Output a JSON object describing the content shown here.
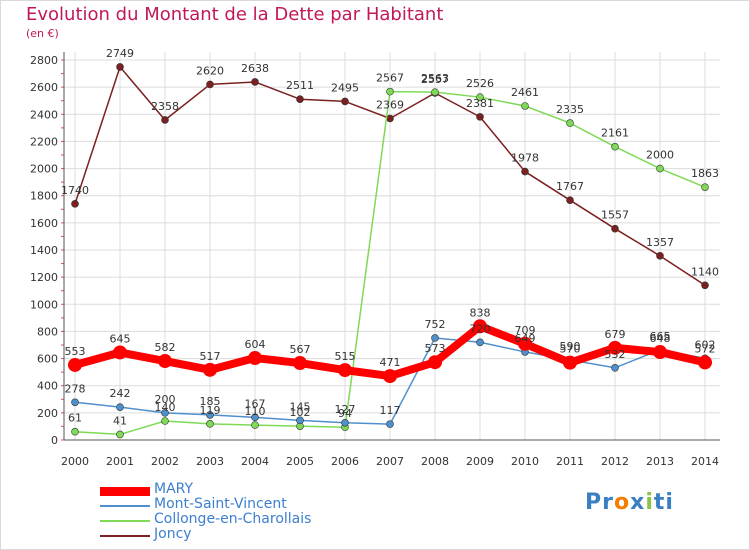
{
  "chart_data": {
    "type": "line",
    "title": "Evolution du Montant de la Dette par Habitant",
    "subtitle": "(en €)",
    "x": [
      "2000",
      "2001",
      "2002",
      "2003",
      "2004",
      "2005",
      "2006",
      "2007",
      "2008",
      "2009",
      "2010",
      "2011",
      "2012",
      "2013",
      "2014"
    ],
    "ylim": [
      0,
      2800
    ],
    "yticks": [
      0,
      200,
      400,
      600,
      800,
      1000,
      1200,
      1400,
      1600,
      1800,
      2000,
      2200,
      2400,
      2600,
      2800
    ],
    "grid": true,
    "legend_position": "bottom-left",
    "series": [
      {
        "name": "MARY",
        "color": "#ff0000",
        "values": [
          553,
          645,
          582,
          517,
          604,
          567,
          515,
          471,
          573,
          838,
          709,
          570,
          679,
          648,
          572
        ]
      },
      {
        "name": "Mont-Saint-Vincent",
        "color": "#4f90cc",
        "values": [
          278,
          242,
          200,
          185,
          167,
          145,
          127,
          117,
          752,
          720,
          649,
          590,
          532,
          665,
          602
        ]
      },
      {
        "name": "Collonge-en-Charollais",
        "color": "#7ed957",
        "values": [
          61,
          41,
          140,
          119,
          110,
          102,
          94,
          2567,
          2563,
          2526,
          2461,
          2335,
          2161,
          2000,
          1863
        ]
      },
      {
        "name": "Joncy",
        "color": "#7b2020",
        "values": [
          1740,
          2749,
          2358,
          2620,
          2638,
          2511,
          2495,
          2369,
          2557,
          2381,
          1978,
          1767,
          1557,
          1357,
          1140
        ]
      }
    ]
  },
  "logo": {
    "text_parts": [
      "Pr",
      "o",
      "x",
      "i",
      "ti"
    ],
    "colors": [
      "#3a7fc1",
      "#f57c00",
      "#3a7fc1",
      "#8bc34a",
      "#3a7fc1"
    ]
  }
}
